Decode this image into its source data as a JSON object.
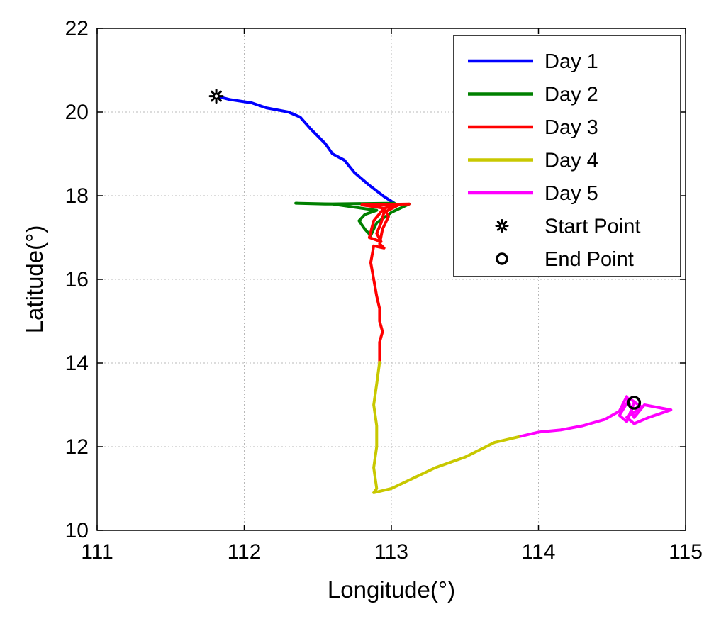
{
  "chart_data": {
    "type": "line",
    "xlabel": "Longitude(°)",
    "ylabel": "Latitude(°)",
    "xlim": [
      111,
      115
    ],
    "ylim": [
      10,
      22
    ],
    "xticks": [
      "111",
      "112",
      "113",
      "114",
      "115"
    ],
    "yticks": [
      "10",
      "12",
      "14",
      "16",
      "18",
      "20",
      "22"
    ],
    "grid": true,
    "legend_position": "top-right",
    "series": [
      {
        "name": "Day 1",
        "color": "#0000ff",
        "x": [
          111.81,
          111.9,
          112.05,
          112.15,
          112.3,
          112.38,
          112.45,
          112.55,
          112.6,
          112.68,
          112.75,
          112.85,
          112.95,
          113.02
        ],
        "y": [
          20.38,
          20.3,
          20.22,
          20.1,
          20.0,
          19.88,
          19.6,
          19.25,
          19.0,
          18.85,
          18.55,
          18.25,
          17.98,
          17.82
        ]
      },
      {
        "name": "Day 2",
        "color": "#008000",
        "x": [
          113.02,
          112.55,
          112.35,
          112.6,
          112.9,
          112.82,
          112.78,
          112.82,
          112.86,
          112.9,
          113.0,
          113.12
        ],
        "y": [
          17.82,
          17.8,
          17.82,
          17.8,
          17.65,
          17.55,
          17.4,
          17.2,
          17.05,
          17.35,
          17.6,
          17.8
        ]
      },
      {
        "name": "Day 3",
        "color": "#ff0000",
        "x": [
          113.12,
          112.8,
          112.95,
          113.05,
          112.95,
          112.93,
          112.9,
          112.93,
          112.85,
          112.88,
          112.95,
          112.98,
          112.94,
          112.92,
          112.95,
          112.88,
          112.86,
          112.88,
          112.9,
          112.92,
          112.92,
          112.94,
          112.92,
          112.92
        ],
        "y": [
          17.8,
          17.78,
          17.7,
          17.78,
          17.6,
          17.35,
          17.1,
          16.9,
          17.0,
          17.4,
          17.7,
          17.5,
          17.2,
          16.85,
          16.75,
          16.8,
          16.4,
          16.0,
          15.6,
          15.3,
          15.0,
          14.75,
          14.5,
          14.02
        ]
      },
      {
        "name": "Day 4",
        "color": "#c8c800",
        "x": [
          112.92,
          112.9,
          112.88,
          112.9,
          112.9,
          112.88,
          112.9,
          112.88,
          113.0,
          113.15,
          113.3,
          113.5,
          113.7,
          113.88
        ],
        "y": [
          14.02,
          13.5,
          13.0,
          12.5,
          12.0,
          11.5,
          11.0,
          10.9,
          11.0,
          11.25,
          11.5,
          11.75,
          12.1,
          12.25
        ]
      },
      {
        "name": "Day 5",
        "color": "#ff00ff",
        "x": [
          113.88,
          114.0,
          114.15,
          114.3,
          114.45,
          114.55,
          114.6,
          114.65,
          114.72,
          114.9,
          114.75,
          114.65,
          114.6,
          114.7,
          114.62,
          114.55,
          114.6,
          114.65
        ],
        "y": [
          12.25,
          12.35,
          12.4,
          12.5,
          12.65,
          12.85,
          13.2,
          12.7,
          13.0,
          12.88,
          12.7,
          12.55,
          12.7,
          12.95,
          13.15,
          12.75,
          12.6,
          13.05
        ]
      }
    ],
    "markers": [
      {
        "name": "Start Point",
        "symbol": "star",
        "x": 111.81,
        "y": 20.38
      },
      {
        "name": "End Point",
        "symbol": "circle",
        "x": 114.65,
        "y": 13.05
      }
    ]
  }
}
